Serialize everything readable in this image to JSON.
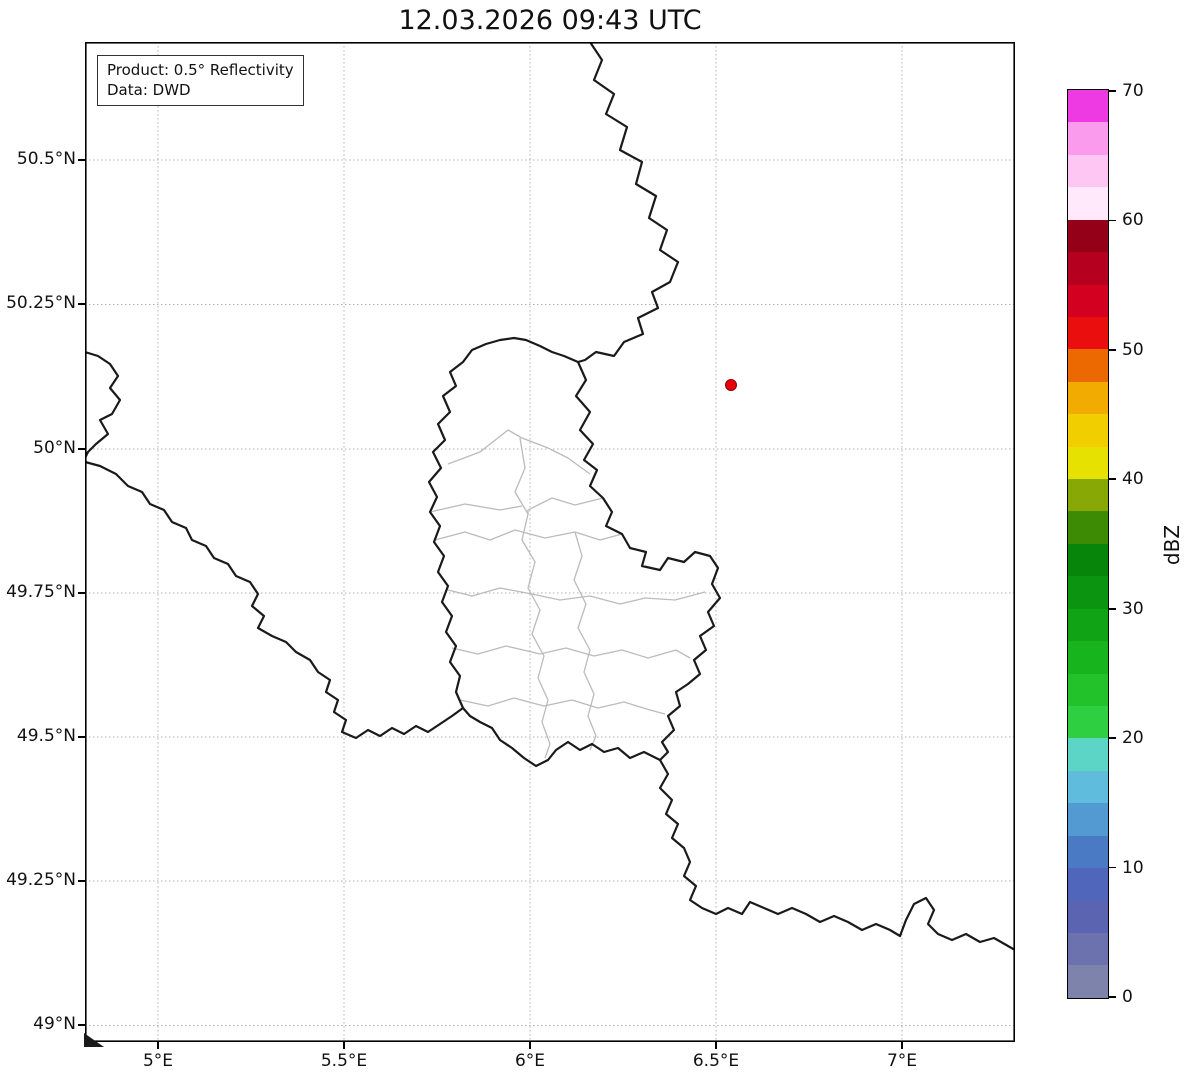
{
  "title": "12.03.2026 09:43 UTC",
  "info_box": {
    "product": "Product: 0.5° Reflectivity",
    "data_source": "Data: DWD"
  },
  "axes": {
    "x_tick_labels": [
      "5°E",
      "5.5°E",
      "6°E",
      "6.5°E",
      "7°E"
    ],
    "y_tick_labels": [
      "50.5°N",
      "50.25°N",
      "50°N",
      "49.75°N",
      "49.5°N",
      "49.25°N",
      "49°N"
    ]
  },
  "colorbar": {
    "label": "dBZ",
    "min": 0,
    "max": 70,
    "tick_values": [
      0,
      10,
      20,
      30,
      40,
      50,
      60,
      70
    ],
    "segment_colors_bottom_to_top": [
      "#7d83ab",
      "#6b72ad",
      "#5a64b0",
      "#4f66ba",
      "#4b7ac4",
      "#539ad2",
      "#5fbcdc",
      "#5cd4c6",
      "#2ecf40",
      "#22c32a",
      "#18b41e",
      "#10a315",
      "#0b9410",
      "#07850b",
      "#3d8a05",
      "#88a806",
      "#e6e100",
      "#f0ce00",
      "#f2ab00",
      "#ec6800",
      "#ea0e0e",
      "#d4001f",
      "#b50020",
      "#930018",
      "#ffe9fb",
      "#fec7f3",
      "#fb9bee",
      "#ee3ae2"
    ]
  },
  "map": {
    "border_color": "#1a1a1a",
    "district_border_color": "#bbbbbb",
    "gridline_color": "#b0b0b0",
    "marker": {
      "color": "#e8000b",
      "approx_position": "6.54°E, 50.11°N"
    }
  }
}
